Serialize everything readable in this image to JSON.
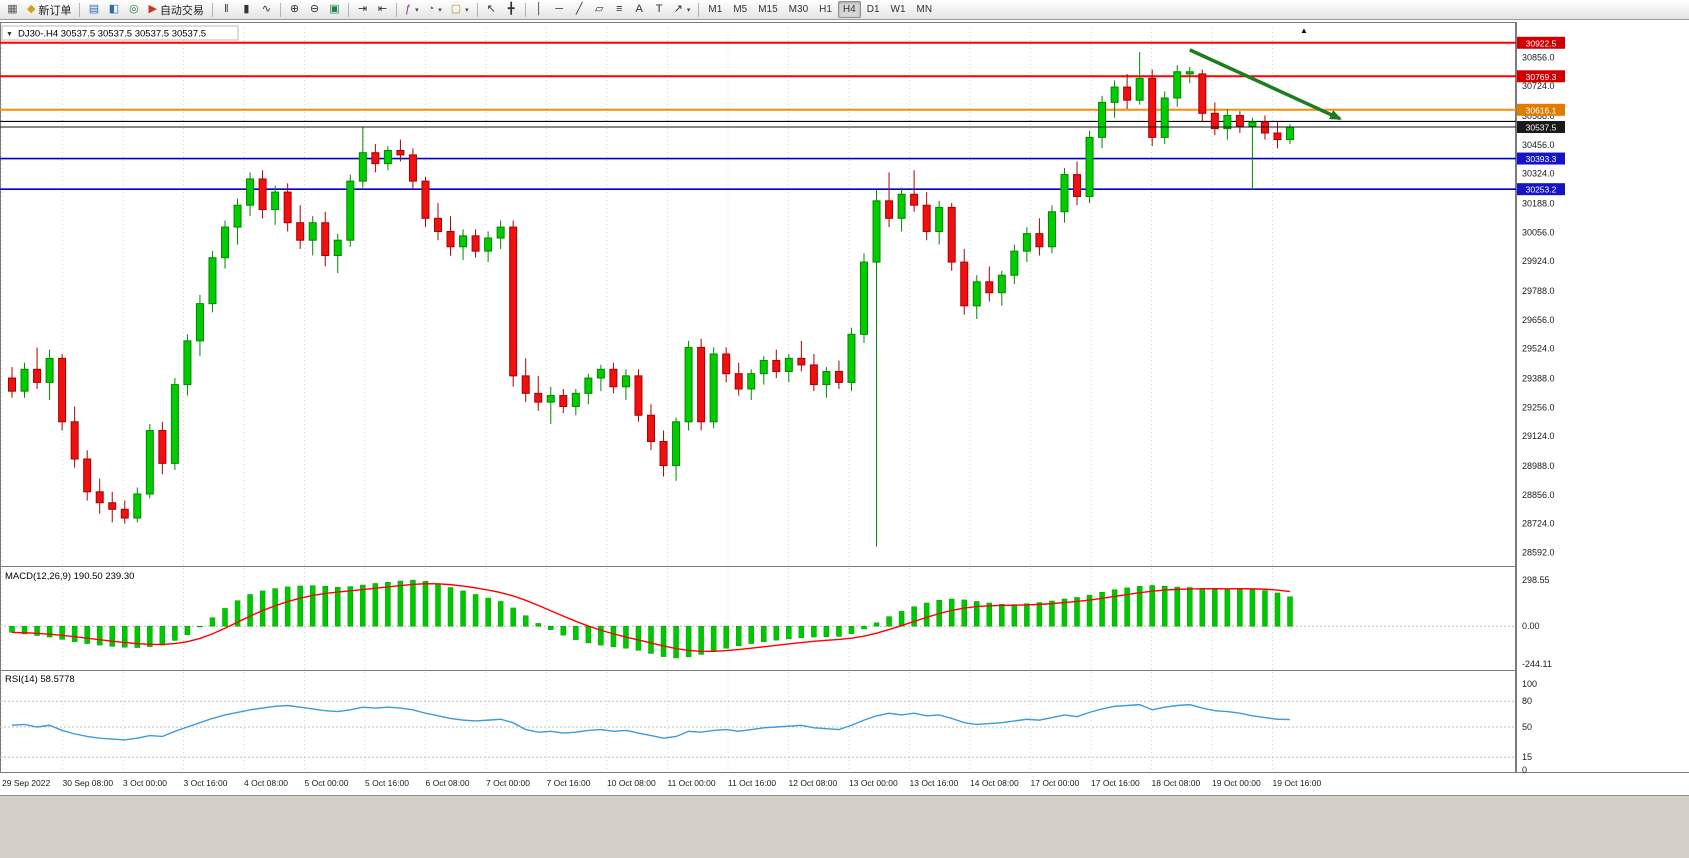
{
  "window": {
    "chart_title": "DJ30-.H4  30537.5 30537.5 30537.5 30537.5"
  },
  "icons": {
    "collapse": "▼",
    "end_marker": "▲",
    "dropdown": "▾"
  },
  "colors": {
    "bull": "#00cc00",
    "bull_edge": "#008800",
    "bear": "#f01010",
    "bear_edge": "#aa0000",
    "macd_hist": "#00c800",
    "macd_hist_edge": "#00a000",
    "macd_signal": "#ff0000",
    "rsi_line": "#3e9bd8",
    "grid": "#d8d8d8",
    "level_dash": "#bcbcbc"
  },
  "toolbar": {
    "notification_count": "1",
    "active_timeframe": "H4",
    "timeframes": [
      "M1",
      "M5",
      "M15",
      "M30",
      "H1",
      "H4",
      "D1",
      "W1",
      "MN"
    ],
    "items": [
      {
        "name": "new-chart-button",
        "icon": "new-chart-icon",
        "glyph": "▦",
        "color": "#555555"
      },
      {
        "name": "new-order-button",
        "icon": "new-order-icon",
        "glyph": "◆",
        "color": "#d4a017",
        "label": "新订单"
      },
      {
        "sep": true
      },
      {
        "name": "market-watch-button",
        "icon": "market-watch-icon",
        "glyph": "▤",
        "color": "#2b6cb0"
      },
      {
        "name": "data-window-button",
        "icon": "data-window-icon",
        "glyph": "◧",
        "color": "#2b6cb0"
      },
      {
        "name": "navigator-button",
        "icon": "navigator-icon",
        "glyph": "◎",
        "color": "#1d8348"
      },
      {
        "name": "algo-trading-button",
        "icon": "algo-trading-icon",
        "glyph": "▶",
        "color": "#c0392b",
        "label": "自动交易"
      },
      {
        "sep": true
      },
      {
        "name": "bars-chart-button",
        "icon": "bars-chart-icon",
        "glyph": "‖",
        "color": "#333333"
      },
      {
        "name": "candles-chart-button",
        "icon": "candles-chart-icon",
        "glyph": "▮",
        "color": "#333333"
      },
      {
        "name": "line-chart-button",
        "icon": "line-chart-icon",
        "glyph": "∿",
        "color": "#333333"
      },
      {
        "sep": true
      },
      {
        "name": "zoom-in-button",
        "icon": "zoom-in-icon",
        "glyph": "⊕",
        "color": "#333333"
      },
      {
        "name": "zoom-out-button",
        "icon": "zoom-out-icon",
        "glyph": "⊖",
        "color": "#333333"
      },
      {
        "name": "tile-windows-button",
        "icon": "tile-windows-icon",
        "glyph": "▣",
        "color": "#1d8348"
      },
      {
        "sep": true
      },
      {
        "name": "auto-scroll-button",
        "icon": "auto-scroll-icon",
        "glyph": "⇥",
        "color": "#333333"
      },
      {
        "name": "chart-shift-button",
        "icon": "chart-shift-icon",
        "glyph": "⇤",
        "color": "#333333"
      },
      {
        "sep": true
      },
      {
        "name": "indicators-button",
        "icon": "indicators-icon",
        "glyph": "ƒ",
        "color": "#7d3c98",
        "dropdown": true
      },
      {
        "name": "periods-button",
        "icon": "periods-icon",
        "glyph": "◔",
        "color": "#2b6cb0",
        "dropdown": true
      },
      {
        "name": "templates-button",
        "icon": "templates-icon",
        "glyph": "▢",
        "color": "#b7950b",
        "dropdown": true
      },
      {
        "sep": true
      },
      {
        "name": "cursor-button",
        "icon": "cursor-icon",
        "glyph": "↖",
        "color": "#333333"
      },
      {
        "name": "crosshair-button",
        "icon": "crosshair-icon",
        "glyph": "╋",
        "color": "#333333"
      },
      {
        "sep": true
      },
      {
        "name": "vertical-line-button",
        "icon": "vertical-line-icon",
        "glyph": "│",
        "color": "#333333"
      },
      {
        "name": "horizontal-line-button",
        "icon": "horizontal-line-icon",
        "glyph": "─",
        "color": "#333333"
      },
      {
        "name": "trendline-button",
        "icon": "trendline-icon",
        "glyph": "╱",
        "color": "#333333"
      },
      {
        "name": "channel-button",
        "icon": "channel-icon",
        "glyph": "▱",
        "color": "#333333"
      },
      {
        "name": "fibonacci-button",
        "icon": "fibonacci-icon",
        "glyph": "≡",
        "color": "#333333"
      },
      {
        "name": "text-button",
        "icon": "text-icon",
        "glyph": "A",
        "color": "#333333"
      },
      {
        "name": "text-label-button",
        "icon": "text-label-icon",
        "glyph": "T",
        "color": "#333333"
      },
      {
        "name": "arrows-button",
        "icon": "arrows-icon",
        "glyph": "↗",
        "color": "#333333",
        "dropdown": true
      },
      {
        "sep": true
      }
    ]
  },
  "chart_data": {
    "type": "candlestick",
    "title": "DJ30-.H4",
    "price_range": [
      30990,
      28540
    ],
    "price_axis_ticks": [
      "30856.0",
      "30724.0",
      "30588.0",
      "30456.0",
      "30324.0",
      "30188.0",
      "30056.0",
      "29924.0",
      "29788.0",
      "29656.0",
      "29524.0",
      "29388.0",
      "29256.0",
      "29124.0",
      "28988.0",
      "28856.0",
      "28724.0",
      "28592.0"
    ],
    "time_axis": [
      "29 Sep 2022",
      "30 Sep 08:00",
      "3 Oct 00:00",
      "3 Oct 16:00",
      "4 Oct 08:00",
      "5 Oct 00:00",
      "5 Oct 16:00",
      "6 Oct 08:00",
      "7 Oct 00:00",
      "7 Oct 16:00",
      "10 Oct 08:00",
      "11 Oct 00:00",
      "11 Oct 16:00",
      "12 Oct 08:00",
      "13 Oct 00:00",
      "13 Oct 16:00",
      "14 Oct 08:00",
      "17 Oct 00:00",
      "17 Oct 16:00",
      "18 Oct 08:00",
      "19 Oct 00:00",
      "19 Oct 16:00"
    ],
    "hlines": [
      {
        "price": 30922.5,
        "color": "#ff0000",
        "width": 2,
        "label": "30922.5",
        "label_bg": "#d00000"
      },
      {
        "price": 30769.3,
        "color": "#ff0000",
        "width": 2,
        "label": "30769.3",
        "label_bg": "#d00000"
      },
      {
        "price": 30616.1,
        "color": "#ff8c00",
        "width": 2,
        "label": "30616.1",
        "label_bg": "#e07c00"
      },
      {
        "price": 30563.0,
        "color": "#000000",
        "width": 1.2
      },
      {
        "price": 30393.3,
        "color": "#0000cd",
        "width": 1.6,
        "label": "30393.3",
        "label_bg": "#1515c8"
      },
      {
        "price": 30253.2,
        "color": "#0000cd",
        "width": 1.6,
        "label": "30253.2",
        "label_bg": "#1515c8"
      }
    ],
    "current_price": {
      "value": 30537.5,
      "label": "30537.5"
    },
    "arrow": {
      "from_index": 94,
      "from_price": 30890,
      "to_index": 106,
      "to_price": 30575,
      "color": "#1e7d1e"
    },
    "ohlc": [
      [
        29390,
        29440,
        29300,
        29330
      ],
      [
        29330,
        29460,
        29300,
        29430
      ],
      [
        29430,
        29530,
        29340,
        29370
      ],
      [
        29370,
        29520,
        29290,
        29480
      ],
      [
        29480,
        29500,
        29150,
        29190
      ],
      [
        29190,
        29260,
        28980,
        29020
      ],
      [
        29020,
        29060,
        28830,
        28870
      ],
      [
        28870,
        28930,
        28770,
        28820
      ],
      [
        28820,
        28870,
        28730,
        28790
      ],
      [
        28790,
        28830,
        28724,
        28750
      ],
      [
        28750,
        28890,
        28730,
        28860
      ],
      [
        28860,
        29180,
        28840,
        29150
      ],
      [
        29150,
        29190,
        28950,
        29000
      ],
      [
        29000,
        29390,
        28970,
        29360
      ],
      [
        29360,
        29590,
        29310,
        29560
      ],
      [
        29560,
        29770,
        29490,
        29730
      ],
      [
        29730,
        29970,
        29690,
        29940
      ],
      [
        29940,
        30110,
        29890,
        30080
      ],
      [
        30080,
        30210,
        30000,
        30180
      ],
      [
        30180,
        30330,
        30130,
        30300
      ],
      [
        30300,
        30340,
        30120,
        30160
      ],
      [
        30160,
        30270,
        30090,
        30240
      ],
      [
        30240,
        30280,
        30060,
        30100
      ],
      [
        30100,
        30180,
        29980,
        30020
      ],
      [
        30020,
        30130,
        29950,
        30100
      ],
      [
        30100,
        30150,
        29900,
        29950
      ],
      [
        29950,
        30050,
        29870,
        30020
      ],
      [
        30020,
        30320,
        29990,
        30290
      ],
      [
        30290,
        30540,
        30260,
        30420
      ],
      [
        30420,
        30460,
        30330,
        30370
      ],
      [
        30370,
        30450,
        30340,
        30430
      ],
      [
        30430,
        30480,
        30380,
        30410
      ],
      [
        30410,
        30440,
        30250,
        30290
      ],
      [
        30290,
        30310,
        30080,
        30120
      ],
      [
        30120,
        30190,
        30020,
        30060
      ],
      [
        30060,
        30130,
        29950,
        29990
      ],
      [
        29990,
        30070,
        29930,
        30040
      ],
      [
        30040,
        30070,
        29940,
        29970
      ],
      [
        29970,
        30060,
        29920,
        30030
      ],
      [
        30030,
        30110,
        29980,
        30080
      ],
      [
        30080,
        30110,
        29350,
        29400
      ],
      [
        29400,
        29480,
        29280,
        29320
      ],
      [
        29320,
        29400,
        29240,
        29280
      ],
      [
        29280,
        29350,
        29180,
        29310
      ],
      [
        29310,
        29340,
        29230,
        29260
      ],
      [
        29260,
        29340,
        29220,
        29320
      ],
      [
        29320,
        29410,
        29270,
        29390
      ],
      [
        29390,
        29450,
        29330,
        29430
      ],
      [
        29430,
        29460,
        29320,
        29350
      ],
      [
        29350,
        29430,
        29290,
        29400
      ],
      [
        29400,
        29430,
        29190,
        29220
      ],
      [
        29220,
        29270,
        29060,
        29100
      ],
      [
        29100,
        29150,
        28940,
        28990
      ],
      [
        28990,
        29210,
        28920,
        29190
      ],
      [
        29190,
        29560,
        29150,
        29530
      ],
      [
        29530,
        29570,
        29150,
        29190
      ],
      [
        29190,
        29530,
        29160,
        29500
      ],
      [
        29500,
        29530,
        29370,
        29410
      ],
      [
        29410,
        29460,
        29310,
        29340
      ],
      [
        29340,
        29430,
        29290,
        29410
      ],
      [
        29410,
        29490,
        29360,
        29470
      ],
      [
        29470,
        29520,
        29390,
        29420
      ],
      [
        29420,
        29500,
        29370,
        29480
      ],
      [
        29480,
        29560,
        29420,
        29450
      ],
      [
        29450,
        29500,
        29330,
        29360
      ],
      [
        29360,
        29440,
        29300,
        29420
      ],
      [
        29420,
        29470,
        29340,
        29370
      ],
      [
        29370,
        29620,
        29330,
        29590
      ],
      [
        29590,
        29960,
        29550,
        29920
      ],
      [
        29920,
        30250,
        28620,
        30200
      ],
      [
        30200,
        30330,
        30080,
        30120
      ],
      [
        30120,
        30260,
        30060,
        30230
      ],
      [
        30230,
        30340,
        30150,
        30180
      ],
      [
        30180,
        30240,
        30020,
        30060
      ],
      [
        30060,
        30200,
        30000,
        30170
      ],
      [
        30170,
        30190,
        29880,
        29920
      ],
      [
        29920,
        29980,
        29680,
        29720
      ],
      [
        29720,
        29860,
        29660,
        29830
      ],
      [
        29830,
        29900,
        29740,
        29780
      ],
      [
        29780,
        29880,
        29720,
        29860
      ],
      [
        29860,
        30000,
        29820,
        29970
      ],
      [
        29970,
        30080,
        29920,
        30050
      ],
      [
        30050,
        30120,
        29950,
        29990
      ],
      [
        29990,
        30180,
        29960,
        30150
      ],
      [
        30150,
        30350,
        30100,
        30320
      ],
      [
        30320,
        30380,
        30180,
        30220
      ],
      [
        30220,
        30520,
        30190,
        30490
      ],
      [
        30490,
        30680,
        30440,
        30650
      ],
      [
        30650,
        30750,
        30580,
        30720
      ],
      [
        30720,
        30780,
        30620,
        30660
      ],
      [
        30660,
        30880,
        30640,
        30760
      ],
      [
        30760,
        30800,
        30450,
        30490
      ],
      [
        30490,
        30700,
        30460,
        30670
      ],
      [
        30670,
        30820,
        30630,
        30790
      ],
      [
        30780,
        30812,
        30738,
        30790
      ],
      [
        30780,
        30800,
        30560,
        30600
      ],
      [
        30600,
        30650,
        30500,
        30530
      ],
      [
        30530,
        30620,
        30480,
        30590
      ],
      [
        30590,
        30610,
        30510,
        30540
      ],
      [
        30540,
        30580,
        30250,
        30560
      ],
      [
        30560,
        30590,
        30480,
        30510
      ],
      [
        30510,
        30560,
        30440,
        30480
      ],
      [
        30480,
        30550,
        30460,
        30537.5
      ]
    ],
    "macd": {
      "label": "MACD(12,26,9) 190.50 239.30",
      "scale": [
        "298.55",
        "0.00",
        "-244.11"
      ],
      "range": [
        298.55,
        -244.11
      ],
      "values": [
        -40,
        -50,
        -60,
        -70,
        -85,
        -100,
        -112,
        -122,
        -130,
        -136,
        -138,
        -132,
        -122,
        -92,
        -55,
        -5,
        55,
        115,
        165,
        205,
        228,
        243,
        254,
        260,
        262,
        258,
        252,
        256,
        266,
        276,
        284,
        292,
        298,
        290,
        272,
        250,
        228,
        205,
        182,
        160,
        118,
        68,
        18,
        -22,
        -58,
        -88,
        -108,
        -122,
        -132,
        -142,
        -156,
        -176,
        -196,
        -205,
        -198,
        -182,
        -162,
        -142,
        -126,
        -112,
        -100,
        -90,
        -82,
        -75,
        -70,
        -68,
        -66,
        -48,
        -18,
        22,
        62,
        96,
        126,
        150,
        168,
        176,
        170,
        160,
        150,
        142,
        140,
        146,
        153,
        163,
        176,
        186,
        201,
        219,
        236,
        248,
        258,
        263,
        259,
        253,
        250,
        246,
        243,
        241,
        243,
        238,
        230,
        215,
        190.5
      ]
    },
    "rsi": {
      "label": "RSI(14) 58.5778",
      "scale": [
        "100",
        "80",
        "50",
        "15",
        "0"
      ],
      "levels": [
        80,
        50,
        15
      ],
      "range": [
        100,
        0
      ],
      "values": [
        52,
        53,
        50,
        52,
        46,
        42,
        39,
        37,
        36,
        35,
        37,
        40,
        39,
        45,
        50,
        55,
        60,
        64,
        67,
        70,
        72,
        74,
        75,
        73,
        71,
        69,
        68,
        70,
        73,
        72,
        73,
        72,
        70,
        66,
        63,
        60,
        58,
        57,
        58,
        59,
        55,
        47,
        44,
        45,
        43,
        44,
        46,
        47,
        45,
        46,
        43,
        40,
        37,
        39,
        45,
        44,
        46,
        47,
        45,
        47,
        49,
        50,
        51,
        52,
        49,
        48,
        47,
        52,
        58,
        63,
        66,
        64,
        66,
        63,
        64,
        60,
        55,
        53,
        54,
        55,
        57,
        59,
        58,
        61,
        64,
        62,
        67,
        71,
        74,
        75,
        76,
        70,
        73,
        75,
        76,
        72,
        69,
        68,
        66,
        63,
        61,
        59,
        58.6
      ]
    }
  }
}
